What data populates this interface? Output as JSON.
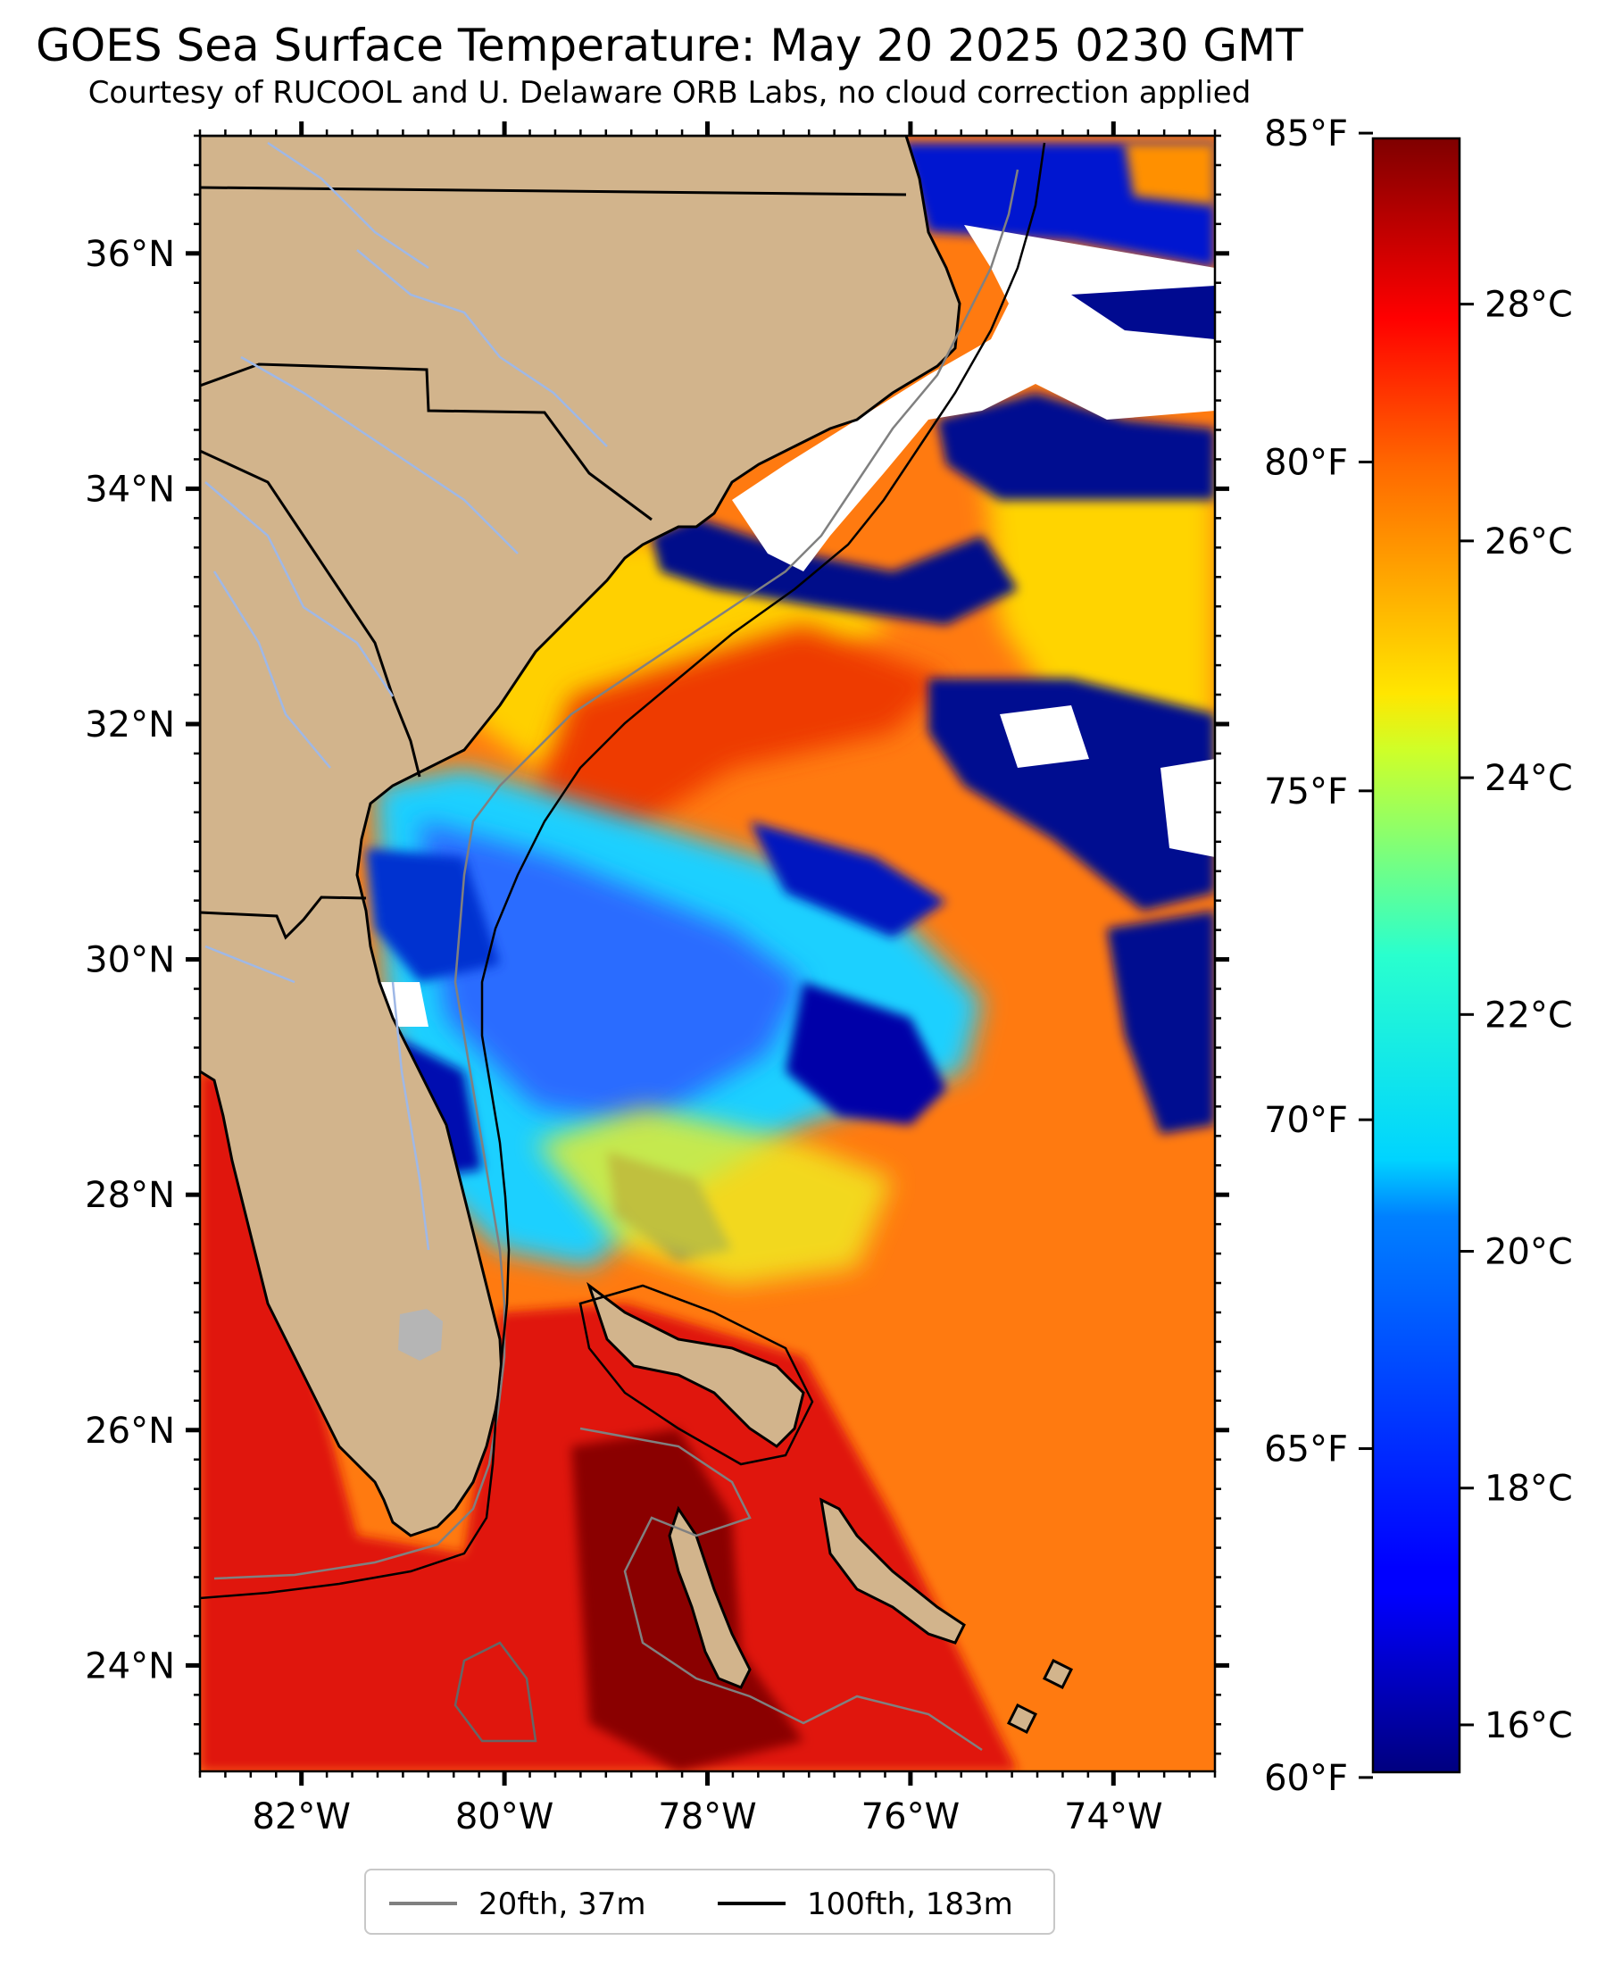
{
  "title": "GOES Sea Surface Temperature: May 20 2025 0230 GMT",
  "subtitle": "Courtesy of RUCOOL and U. Delaware ORB Labs, no cloud correction applied",
  "map": {
    "lat_ticks": [
      "36°N",
      "34°N",
      "32°N",
      "30°N",
      "28°N",
      "26°N",
      "24°N"
    ],
    "lon_ticks": [
      "82°W",
      "80°W",
      "78°W",
      "76°W",
      "74°W"
    ],
    "lat_range": [
      23.1,
      37.0
    ],
    "lon_range": [
      -83.0,
      -73.0
    ],
    "colors": {
      "land": "#d2b48c",
      "cloud": "#ffffff",
      "lake": "#b5b5b5",
      "river": "#9fb8e6"
    }
  },
  "colorbar": {
    "colormap": "jet",
    "celsius_range": [
      15.6,
      29.4
    ],
    "fahrenheit_ticks": [
      "85°F",
      "80°F",
      "75°F",
      "70°F",
      "65°F",
      "60°F"
    ],
    "celsius_ticks": [
      "28°C",
      "26°C",
      "24°C",
      "22°C",
      "20°C",
      "18°C",
      "16°C"
    ]
  },
  "legend": [
    {
      "label": "20fth, 37m",
      "color": "#808080"
    },
    {
      "label": "100fth, 183m",
      "color": "#000000"
    }
  ]
}
